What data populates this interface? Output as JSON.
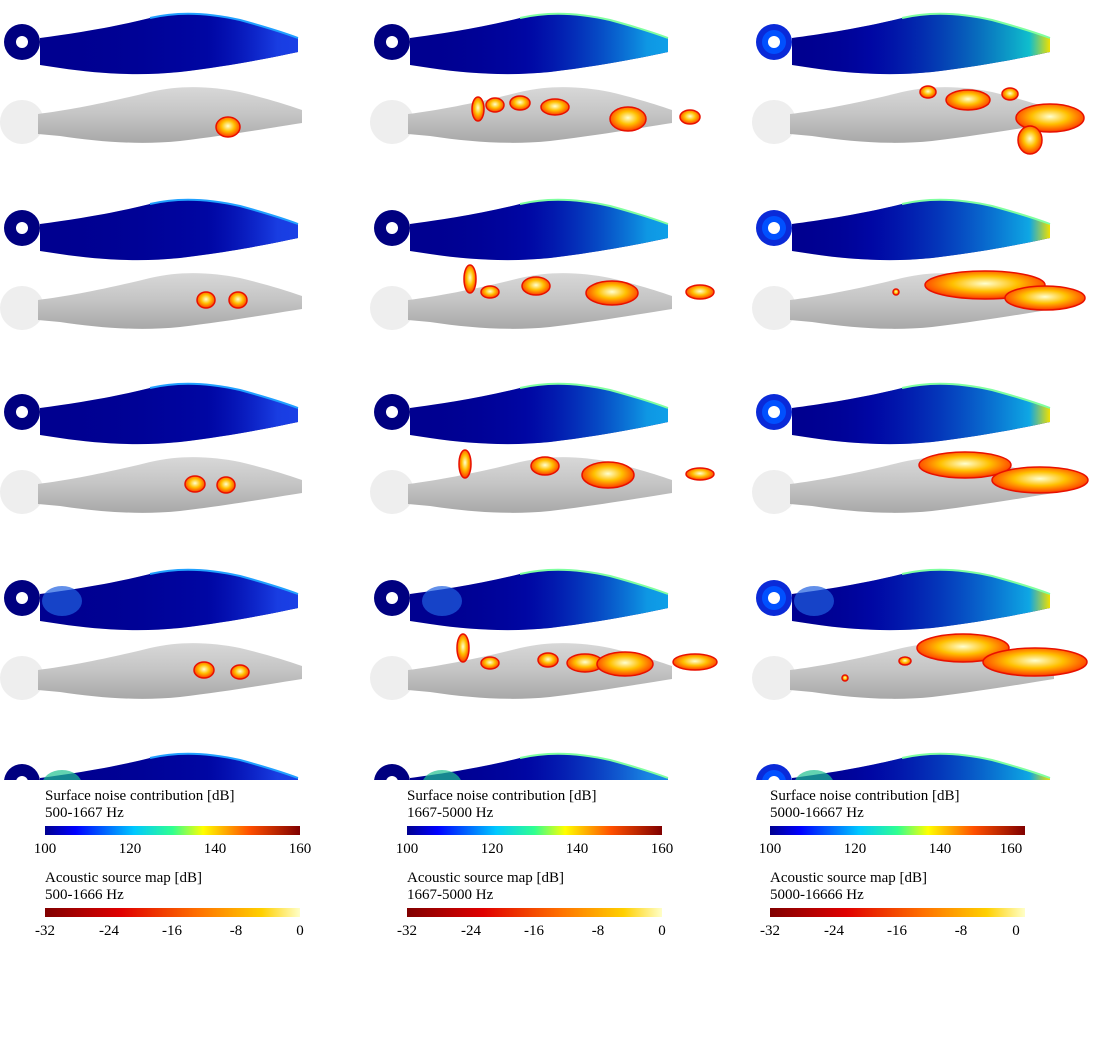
{
  "columns": [
    {
      "surface_legend": {
        "title": "Surface noise contribution [dB]",
        "band": "500-1667 Hz",
        "ticks": [
          "100",
          "120",
          "140",
          "160"
        ]
      },
      "source_legend": {
        "title": "Acoustic source map [dB]",
        "band": "500-1666 Hz",
        "ticks": [
          "-32",
          "-24",
          "-16",
          "-8",
          "0"
        ]
      }
    },
    {
      "surface_legend": {
        "title": "Surface noise contribution [dB]",
        "band": "1667-5000 Hz",
        "ticks": [
          "100",
          "120",
          "140",
          "160"
        ]
      },
      "source_legend": {
        "title": "Acoustic source map [dB]",
        "band": "1667-5000 Hz",
        "ticks": [
          "-32",
          "-24",
          "-16",
          "-8",
          "0"
        ]
      }
    },
    {
      "surface_legend": {
        "title": "Surface noise contribution [dB]",
        "band": "5000-16667 Hz",
        "ticks": [
          "100",
          "120",
          "140",
          "160"
        ]
      },
      "source_legend": {
        "title": "Acoustic source map [dB]",
        "band": "5000-16666 Hz",
        "ticks": [
          "-32",
          "-24",
          "-16",
          "-8",
          "0"
        ]
      }
    }
  ],
  "surface_colormap": "jet",
  "source_colormap": "hot",
  "surface_scale": {
    "min": 100,
    "max": 160,
    "unit": "dB"
  },
  "source_scale": {
    "min": -32,
    "max": 0,
    "unit": "dB"
  },
  "rows": 5
}
